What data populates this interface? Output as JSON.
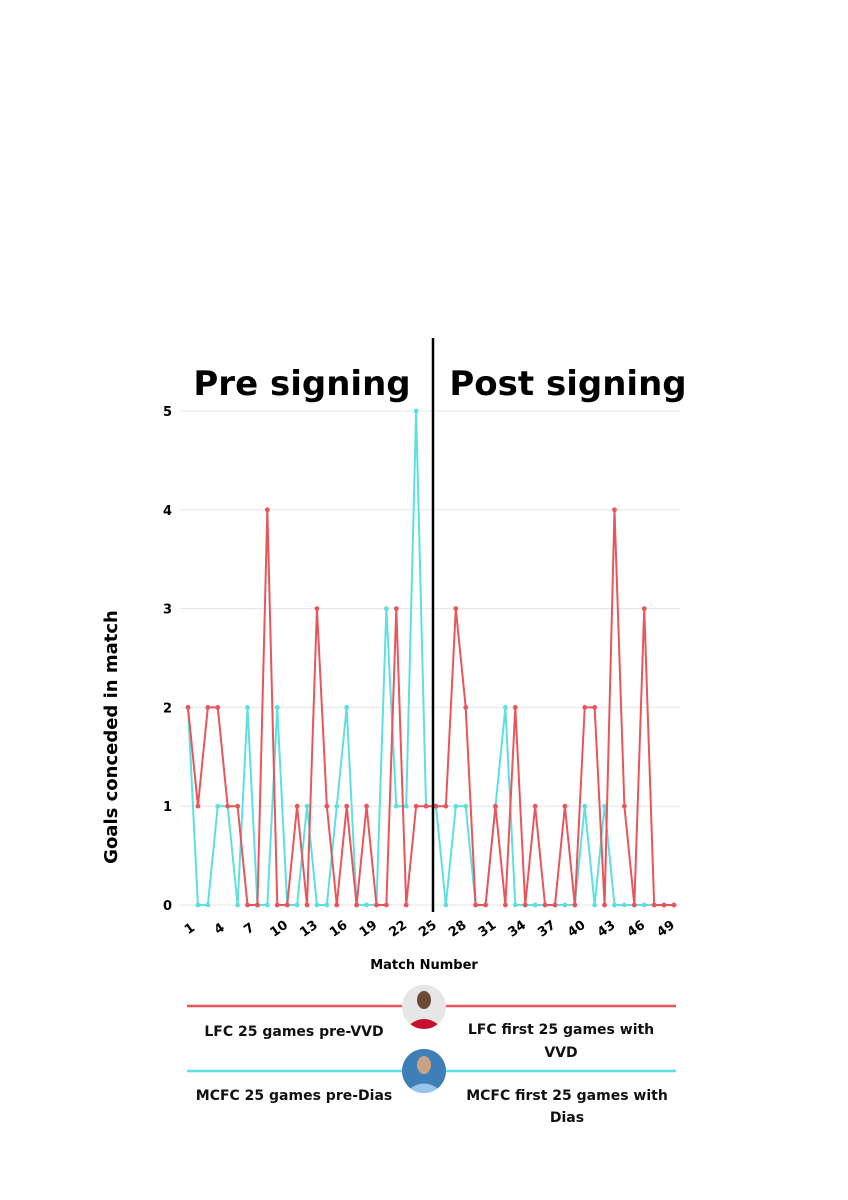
{
  "phase_labels": {
    "pre": "Pre signing",
    "post": "Post signing"
  },
  "chart_data": {
    "type": "line",
    "xlabel": "Match Number",
    "ylabel": "Goals conceded in match",
    "x": [
      1,
      2,
      3,
      4,
      5,
      6,
      7,
      8,
      9,
      10,
      11,
      12,
      13,
      14,
      15,
      16,
      17,
      18,
      19,
      20,
      21,
      22,
      23,
      24,
      25,
      26,
      27,
      28,
      29,
      30,
      31,
      32,
      33,
      34,
      35,
      36,
      37,
      38,
      39,
      40,
      41,
      42,
      43,
      44,
      45,
      46,
      47,
      48,
      49,
      50
    ],
    "x_tick_labels": [
      "1",
      "4",
      "7",
      "10",
      "13",
      "16",
      "19",
      "22",
      "25",
      "28",
      "31",
      "34",
      "37",
      "40",
      "43",
      "46",
      "49"
    ],
    "x_tick_values": [
      1,
      4,
      7,
      10,
      13,
      16,
      19,
      22,
      25,
      28,
      31,
      34,
      37,
      40,
      43,
      46,
      49
    ],
    "ylim": [
      0,
      5
    ],
    "y_ticks": [
      0,
      1,
      2,
      3,
      4,
      5
    ],
    "grid": true,
    "signing_divider_x": 25.5,
    "series": [
      {
        "key": "lfc",
        "color": "#e8555b",
        "values": [
          2,
          1,
          2,
          2,
          1,
          1,
          0,
          0,
          4,
          0,
          0,
          1,
          0,
          3,
          1,
          0,
          1,
          0,
          1,
          0,
          0,
          3,
          0,
          1,
          1,
          1,
          1,
          3,
          2,
          0,
          0,
          1,
          0,
          2,
          0,
          1,
          0,
          0,
          1,
          0,
          2,
          2,
          0,
          4,
          1,
          0,
          3,
          0,
          0,
          0
        ]
      },
      {
        "key": "mcfc",
        "color": "#5ee0e0",
        "values": [
          2,
          0,
          0,
          1,
          1,
          0,
          2,
          0,
          0,
          2,
          0,
          0,
          1,
          0,
          0,
          1,
          2,
          0,
          0,
          0,
          3,
          1,
          1,
          5,
          1,
          1,
          0,
          1,
          1,
          0,
          0,
          1,
          2,
          0,
          0,
          0,
          0,
          0,
          0,
          0,
          1,
          0,
          1,
          0,
          0,
          0,
          0,
          0,
          0,
          0
        ]
      }
    ]
  },
  "legend": {
    "lfc": {
      "pre": "LFC 25 games pre-VVD",
      "post": "LFC first 25 games with VVD",
      "color": "#e8555b",
      "avatar": "player-photo-icon"
    },
    "mcfc": {
      "pre": "MCFC 25 games pre-Dias",
      "post": "MCFC first 25 games with Dias",
      "color": "#5ee0e0",
      "avatar": "city-player-photo-icon"
    }
  }
}
